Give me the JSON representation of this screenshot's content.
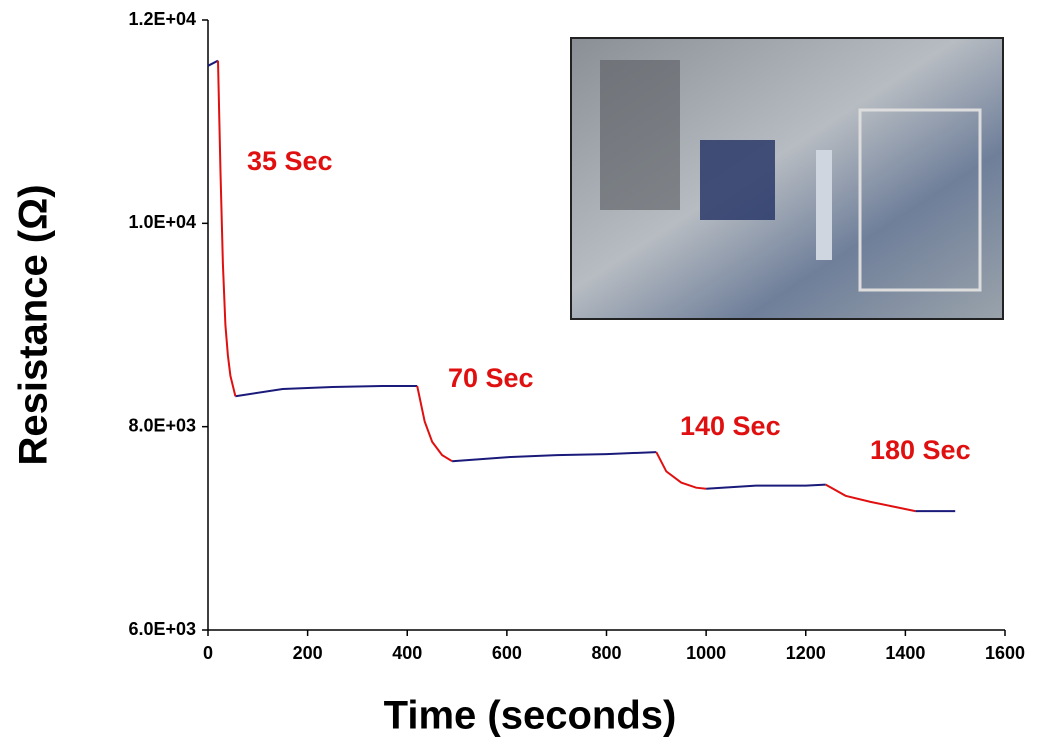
{
  "chart_data": {
    "type": "line",
    "x_label": "Time (seconds)",
    "y_label": "Resistance (Ω)",
    "x": [
      0,
      20,
      25,
      30,
      35,
      40,
      45,
      55,
      150,
      250,
      350,
      420,
      435,
      450,
      470,
      490,
      600,
      700,
      800,
      900,
      920,
      950,
      980,
      1000,
      1100,
      1200,
      1240,
      1280,
      1330,
      1380,
      1420,
      1460,
      1500
    ],
    "series": [
      {
        "color": "#1a1a7a",
        "values": [
          11550,
          11600,
          null,
          null,
          null,
          null,
          null,
          8300,
          8370,
          8390,
          8400,
          8400,
          null,
          null,
          null,
          7660,
          7700,
          7720,
          7730,
          7750,
          null,
          null,
          null,
          7390,
          7420,
          7420,
          7430,
          null,
          null,
          null,
          7170,
          7170,
          7170
        ]
      },
      {
        "color": "#e01010",
        "values": [
          null,
          11600,
          10500,
          9600,
          9000,
          8700,
          8500,
          8300,
          null,
          null,
          null,
          8400,
          8050,
          7850,
          7720,
          7660,
          null,
          null,
          null,
          7750,
          7560,
          7450,
          7400,
          7390,
          null,
          null,
          7430,
          7320,
          7260,
          7210,
          7170,
          null,
          null
        ]
      }
    ],
    "annotations": [
      "35 Sec",
      "70 Sec",
      "140 Sec",
      "180 Sec"
    ],
    "xlim": [
      0,
      1600
    ],
    "xticks": [
      0,
      200,
      400,
      600,
      800,
      1000,
      1200,
      1400,
      1600
    ],
    "ylim": [
      6000,
      12000
    ],
    "yticks": [
      {
        "value": 6000,
        "label": "6.0E+03"
      },
      {
        "value": 8000,
        "label": "8.0E+03"
      },
      {
        "value": 10000,
        "label": "1.0E+04"
      },
      {
        "value": 12000,
        "label": "1.2E+04"
      }
    ],
    "grid": false
  }
}
